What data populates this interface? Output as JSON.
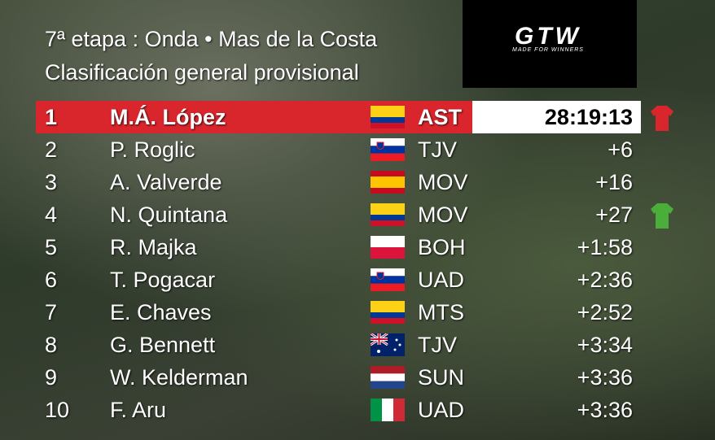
{
  "header": {
    "line1": "7ª etapa : Onda • Mas de la Costa",
    "line2": "Clasificación general provisional"
  },
  "logo": {
    "text": "GTW",
    "tagline": "made for WINNERS"
  },
  "rows": [
    {
      "rank": "1",
      "name": "M.Á. López",
      "team": "AST",
      "time": "28:19:13"
    },
    {
      "rank": "2",
      "name": "P. Roglic",
      "team": "TJV",
      "time": "+6"
    },
    {
      "rank": "3",
      "name": "A. Valverde",
      "team": "MOV",
      "time": "+16"
    },
    {
      "rank": "4",
      "name": "N. Quintana",
      "team": "MOV",
      "time": "+27"
    },
    {
      "rank": "5",
      "name": "R. Majka",
      "team": "BOH",
      "time": "+1:58"
    },
    {
      "rank": "6",
      "name": "T. Pogacar",
      "team": "UAD",
      "time": "+2:36"
    },
    {
      "rank": "7",
      "name": "E. Chaves",
      "team": "MTS",
      "time": "+2:52"
    },
    {
      "rank": "8",
      "name": "G. Bennett",
      "team": "TJV",
      "time": "+3:34"
    },
    {
      "rank": "9",
      "name": "W. Kelderman",
      "team": "SUN",
      "time": "+3:36"
    },
    {
      "rank": "10",
      "name": "F. Aru",
      "team": "UAD",
      "time": "+3:36"
    }
  ]
}
